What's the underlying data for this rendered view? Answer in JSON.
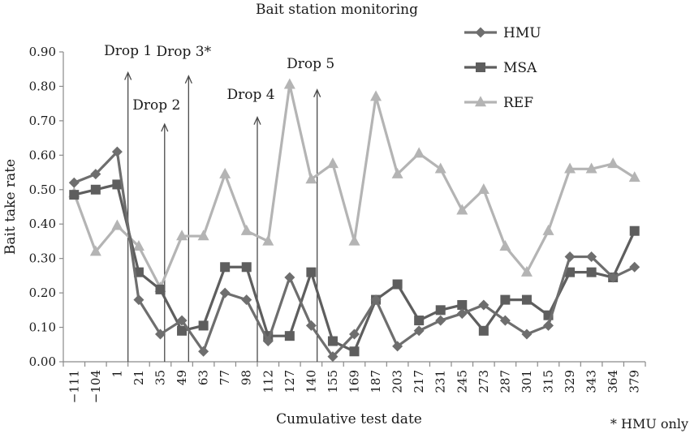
{
  "chart_data": {
    "type": "line",
    "title": "Bait station monitoring",
    "xlabel": "Cumulative test date",
    "ylabel": "Bait take rate",
    "ylim": [
      0,
      0.9
    ],
    "yticks": [
      "0.00",
      "0.10",
      "0.20",
      "0.30",
      "0.40",
      "0.50",
      "0.60",
      "0.70",
      "0.80",
      "0.90"
    ],
    "grid": false,
    "legend_position": "top-right",
    "categories": [
      "−111",
      "−104",
      "1",
      "21",
      "35",
      "49",
      "63",
      "77",
      "98",
      "112",
      "127",
      "140",
      "155",
      "169",
      "187",
      "203",
      "217",
      "231",
      "245",
      "273",
      "287",
      "301",
      "315",
      "329",
      "343",
      "364",
      "379"
    ],
    "series": [
      {
        "name": "HMU",
        "marker": "diamond",
        "color": "#6e6e6e",
        "values": [
          0.52,
          0.545,
          0.61,
          0.18,
          0.08,
          0.12,
          0.03,
          0.2,
          0.18,
          0.06,
          0.245,
          0.105,
          0.015,
          0.08,
          0.18,
          0.045,
          0.09,
          0.12,
          0.14,
          0.165,
          0.12,
          0.08,
          0.105,
          0.305,
          0.305,
          0.245,
          0.275
        ]
      },
      {
        "name": "MSA",
        "marker": "square",
        "color": "#5e5e5e",
        "values": [
          0.485,
          0.5,
          0.515,
          0.26,
          0.21,
          0.09,
          0.105,
          0.275,
          0.275,
          0.075,
          0.075,
          0.26,
          0.06,
          0.03,
          0.18,
          0.225,
          0.12,
          0.15,
          0.165,
          0.09,
          0.18,
          0.18,
          0.135,
          0.26,
          0.26,
          0.245,
          0.38
        ]
      },
      {
        "name": "REF",
        "marker": "triangle",
        "color": "#b4b4b4",
        "values": [
          0.49,
          0.32,
          0.395,
          0.335,
          0.215,
          0.365,
          0.365,
          0.545,
          0.38,
          0.35,
          0.805,
          0.53,
          0.575,
          0.35,
          0.77,
          0.545,
          0.605,
          0.56,
          0.44,
          0.5,
          0.335,
          0.26,
          0.38,
          0.56,
          0.56,
          0.575,
          0.535
        ]
      }
    ],
    "annotations": [
      {
        "label": "Drop 1",
        "x_after_category": "1",
        "arrow_top": 0.84
      },
      {
        "label": "Drop 2",
        "x_after_category": "35",
        "arrow_top": 0.69
      },
      {
        "label": "Drop 3*",
        "x_after_category": "49",
        "arrow_top": 0.83
      },
      {
        "label": "Drop 4",
        "x_after_category": "98",
        "arrow_top": 0.71
      },
      {
        "label": "Drop 5",
        "x_after_category": "140",
        "arrow_top": 0.79
      }
    ],
    "footnote": "* HMU only"
  }
}
